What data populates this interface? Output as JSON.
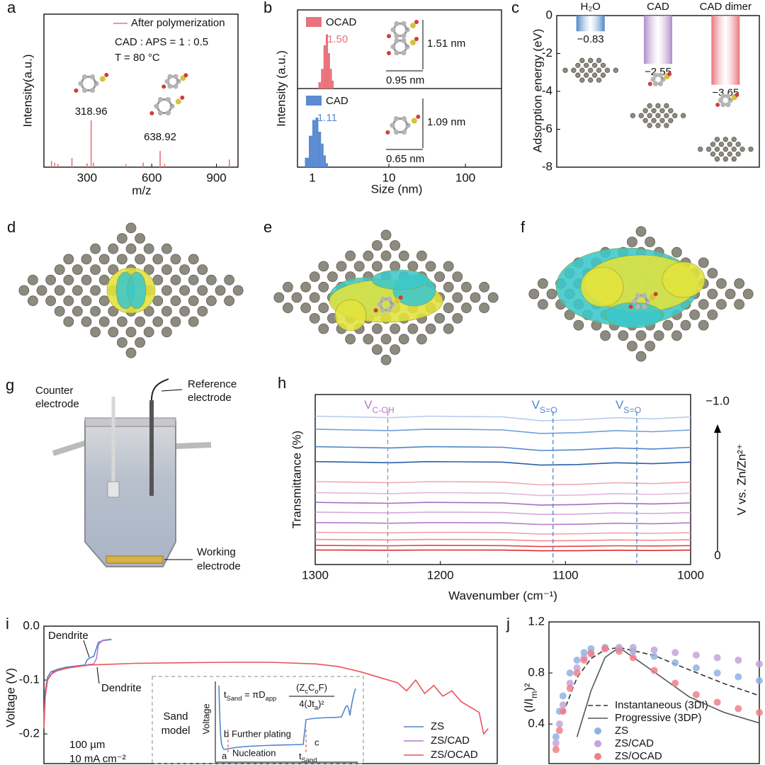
{
  "chart_data": [
    {
      "panel": "a",
      "type": "stem",
      "color": "#e8737a",
      "legend_label": "After polymerization",
      "annotations": [
        "CAD : APS = 1 : 0.5",
        "T = 80 °C"
      ],
      "xlabel": "m/z",
      "ylabel": "Intensity(a.u.)",
      "x": [
        135,
        150,
        165,
        230,
        300,
        318.96,
        330,
        480,
        560,
        638.92,
        660,
        960
      ],
      "values": [
        4,
        3,
        2,
        6,
        2,
        30.6,
        3,
        2,
        3,
        10.6,
        2,
        5
      ],
      "peak_labels": [
        318.96,
        638.92
      ],
      "xlim": [
        100,
        1000
      ],
      "xticks": [
        300,
        600,
        900
      ],
      "ylim": [
        0,
        100
      ]
    },
    {
      "panel": "b",
      "type": "histogram",
      "log_x": true,
      "xlabel": "Size (nm)",
      "ylabel": "Intensity (a.u.)",
      "xlim": [
        0.64,
        296
      ],
      "xticks": [
        1,
        10,
        100
      ],
      "ylim": [
        0,
        100
      ],
      "series": [
        {
          "name": "OCAD",
          "color": "#e8737a",
          "bins": [
            1.2,
            1.3,
            1.4,
            1.5,
            1.6,
            1.7,
            1.8,
            1.9
          ],
          "values": [
            8,
            25,
            55,
            69,
            45,
            25,
            10
          ],
          "peak": {
            "value": 1.5,
            "label": "1.50"
          },
          "dimensions": [
            "1.51 nm",
            "0.95 nm"
          ]
        },
        {
          "name": "CAD",
          "color": "#5b8bd0",
          "bins": [
            0.8,
            0.9,
            1.0,
            1.1,
            1.2,
            1.3,
            1.4,
            1.5,
            1.6
          ],
          "values": [
            12,
            40,
            60,
            63,
            45,
            30,
            15,
            5
          ],
          "peak": 1.11,
          "dimensions": [
            "1.09 nm",
            "0.65 nm"
          ]
        }
      ]
    },
    {
      "panel": "c",
      "type": "bar",
      "ylabel": "Adsorption energy (eV)",
      "categories": [
        "H₂O",
        "CAD",
        "CAD dimer"
      ],
      "values": [
        -0.83,
        -2.55,
        -3.65
      ],
      "value_labels": [
        "−0.83",
        "−2.55",
        "−3.65"
      ],
      "colors": [
        "#4f86c6",
        "#b08cc8",
        "#e8737a"
      ],
      "ylim": [
        -8,
        0
      ],
      "yticks": [
        0,
        -2,
        -4,
        -6,
        -8
      ]
    },
    {
      "panel": "h",
      "type": "line",
      "xlabel": "Wavenumber (cm⁻¹)",
      "ylabel": "Transmittance (%)",
      "y2label": "V vs. Zn/Zn²⁺",
      "xlim": [
        1300,
        1000
      ],
      "xticks": [
        1300,
        1200,
        1100,
        1000
      ],
      "ylim": [
        0,
        12
      ],
      "y2lim": [
        0,
        -1
      ],
      "y2ticks": [
        {
          "value": -1,
          "label": "−1.0"
        },
        0
      ],
      "markers": [
        {
          "symbol": "V",
          "subscript": "C-OH",
          "x": 1242,
          "color": "#b57ac8"
        },
        {
          "symbol": "V",
          "subscript": "S=O",
          "x": 1110,
          "color": "#4f86cc"
        },
        {
          "symbol": "V",
          "subscript": "S=O",
          "x": 1043,
          "color": "#4f86cc"
        }
      ],
      "x": [
        1300,
        1270,
        1240,
        1210,
        1180,
        1150,
        1120,
        1090,
        1060,
        1030,
        1000
      ],
      "series": [
        {
          "color": "#d62f2f",
          "values": [
            0.47,
            0.46,
            0.45,
            0.47,
            0.47,
            0.46,
            0.41,
            0.42,
            0.45,
            0.43,
            0.46
          ]
        },
        {
          "color": "#e04848",
          "values": [
            0.83,
            0.81,
            0.8,
            0.83,
            0.82,
            0.81,
            0.74,
            0.76,
            0.8,
            0.78,
            0.81
          ]
        },
        {
          "color": "#f28a8a",
          "values": [
            1.29,
            1.27,
            1.25,
            1.29,
            1.28,
            1.27,
            1.18,
            1.2,
            1.25,
            1.22,
            1.27
          ]
        },
        {
          "color": "#f3a3a8",
          "values": [
            1.84,
            1.82,
            1.8,
            1.84,
            1.84,
            1.82,
            1.71,
            1.73,
            1.8,
            1.76,
            1.82
          ]
        },
        {
          "color": "#b57ac8",
          "values": [
            2.6,
            2.58,
            2.55,
            2.6,
            2.59,
            2.58,
            2.45,
            2.47,
            2.55,
            2.51,
            2.58
          ]
        },
        {
          "color": "#d4a8dc",
          "values": [
            3.41,
            3.38,
            3.35,
            3.41,
            3.4,
            3.38,
            3.23,
            3.26,
            3.35,
            3.3,
            3.38
          ]
        },
        {
          "color": "#a66dbf",
          "values": [
            4.17,
            4.13,
            4.1,
            4.17,
            4.15,
            4.13,
            3.96,
            4.0,
            4.1,
            4.05,
            4.13
          ]
        },
        {
          "color": "#e3b8de",
          "values": [
            4.93,
            4.89,
            4.85,
            4.93,
            4.91,
            4.89,
            4.7,
            4.74,
            4.85,
            4.79,
            4.89
          ]
        },
        {
          "color": "#f0a7b6",
          "values": [
            5.78,
            5.74,
            5.7,
            5.78,
            5.77,
            5.74,
            5.53,
            5.57,
            5.7,
            5.63,
            5.74
          ]
        },
        {
          "color": "#2b5fa6",
          "values": [
            7.34,
            7.3,
            7.25,
            7.34,
            7.32,
            7.3,
            7.07,
            7.11,
            7.25,
            7.18,
            7.3
          ]
        },
        {
          "color": "#4f86cc",
          "values": [
            8.5,
            8.45,
            8.4,
            8.5,
            8.48,
            8.45,
            8.2,
            8.25,
            8.4,
            8.32,
            8.45
          ]
        },
        {
          "color": "#6f9fd8",
          "values": [
            9.86,
            9.8,
            9.75,
            9.86,
            9.84,
            9.8,
            9.53,
            9.59,
            9.75,
            9.66,
            9.8
          ]
        },
        {
          "color": "#b8cdee",
          "values": [
            10.87,
            10.81,
            10.75,
            10.87,
            10.84,
            10.81,
            10.52,
            10.58,
            10.75,
            10.66,
            10.81
          ]
        }
      ]
    },
    {
      "panel": "i",
      "type": "line",
      "ylabel": "Voltage (V)",
      "xlim": [
        0,
        100
      ],
      "ylim": [
        -0.255,
        0
      ],
      "yticks": [
        {
          "value": 0,
          "label": "0.0"
        },
        -0.1,
        -0.2
      ],
      "annotations": [
        "Dendrite",
        "Dendrite",
        "100 µm",
        "10 mA cm⁻²"
      ],
      "series": [
        {
          "name": "ZS",
          "color": "#4f86cc",
          "x": [
            0,
            0.3,
            0.8,
            1.5,
            3,
            5,
            7,
            9,
            9.6,
            10,
            10.4,
            11,
            12,
            13,
            14.9
          ],
          "values": [
            -0.17,
            -0.12,
            -0.095,
            -0.085,
            -0.08,
            -0.076,
            -0.074,
            -0.072,
            -0.062,
            -0.06,
            -0.058,
            -0.056,
            -0.03,
            -0.027,
            -0.025
          ]
        },
        {
          "name": "ZS/CAD",
          "color": "#b57ac8",
          "x": [
            0,
            0.3,
            0.8,
            1.5,
            3,
            5,
            7,
            9,
            10,
            11,
            11.6,
            12,
            12.5,
            13,
            14.9
          ],
          "values": [
            -0.18,
            -0.13,
            -0.1,
            -0.09,
            -0.082,
            -0.078,
            -0.075,
            -0.073,
            -0.071,
            -0.07,
            -0.06,
            -0.035,
            -0.03,
            -0.026,
            -0.024
          ]
        },
        {
          "name": "ZS/OCAD",
          "color": "#e8555a",
          "x": [
            0,
            0.3,
            0.8,
            2,
            5,
            10,
            20,
            30,
            40,
            50,
            60,
            65,
            70,
            74,
            78,
            80,
            82,
            84,
            86,
            88,
            90,
            92,
            94,
            96,
            97,
            98
          ],
          "values": [
            -0.19,
            -0.13,
            -0.1,
            -0.085,
            -0.078,
            -0.072,
            -0.069,
            -0.068,
            -0.067,
            -0.067,
            -0.07,
            -0.075,
            -0.085,
            -0.095,
            -0.105,
            -0.12,
            -0.1,
            -0.125,
            -0.11,
            -0.13,
            -0.12,
            -0.14,
            -0.15,
            -0.16,
            -0.2,
            -0.19
          ]
        }
      ],
      "inset": {
        "label": [
          "Sand",
          "model"
        ],
        "ylabel": "Voltage",
        "formula": {
          "left": [
            [
              "t",
              "Sand"
            ],
            [
              " = πD",
              "app"
            ]
          ],
          "num": [
            [
              "(Z",
              "c"
            ],
            [
              "C",
              "o"
            ],
            [
              "F)"
            ]
          ],
          "den": [
            [
              "4(Jt",
              "a"
            ],
            [
              ")²"
            ]
          ]
        },
        "points": [
          "a",
          "b",
          "c"
        ],
        "phases": [
          "Nucleation",
          "Further plating"
        ],
        "t_sand": [
          [
            "t",
            "Sand"
          ]
        ]
      }
    },
    {
      "panel": "j",
      "type": "line",
      "ylabel": [
        [
          "(I/I",
          "m"
        ],
        [
          ")²"
        ]
      ],
      "xlim": [
        0,
        3
      ],
      "ylim": [
        0.09,
        1.2
      ],
      "yticks": [
        1.2,
        0.8,
        0.4
      ],
      "series": [
        {
          "name": "Instantaneous (3DI)",
          "style": "dashed",
          "color": "#333333",
          "x": [
            0.2,
            0.4,
            0.6,
            0.8,
            1,
            1.5,
            2,
            2.5,
            3
          ],
          "values": [
            0.483,
            0.762,
            0.913,
            0.982,
            1,
            0.937,
            0.825,
            0.716,
            0.622
          ]
        },
        {
          "name": "Progressive (3DP)",
          "style": "solid",
          "color": "#555555",
          "x": [
            0.4,
            0.6,
            0.8,
            1,
            1.5,
            2,
            2.5,
            3
          ],
          "values": [
            0.298,
            0.661,
            0.922,
            1,
            0.808,
            0.613,
            0.49,
            0.408
          ]
        },
        {
          "name": "ZS",
          "style": "scatter",
          "color": "#8fb3e3",
          "x": [
            0.1,
            0.15,
            0.2,
            0.3,
            0.4,
            0.5,
            0.6,
            0.8,
            1.0,
            1.2,
            1.5,
            1.8,
            2.1,
            2.4,
            2.7,
            3.0
          ],
          "values": [
            0.3,
            0.5,
            0.62,
            0.8,
            0.9,
            0.96,
            0.99,
            1.0,
            0.99,
            0.97,
            0.93,
            0.88,
            0.84,
            0.8,
            0.77,
            0.74
          ]
        },
        {
          "name": "ZS/CAD",
          "style": "scatter",
          "color": "#c6a3d8",
          "x": [
            0.1,
            0.15,
            0.2,
            0.3,
            0.4,
            0.5,
            0.6,
            0.8,
            1.0,
            1.2,
            1.5,
            1.8,
            2.1,
            2.4,
            2.7,
            3.0
          ],
          "values": [
            0.25,
            0.4,
            0.55,
            0.72,
            0.84,
            0.92,
            0.96,
            0.99,
            1.0,
            1.0,
            0.98,
            0.96,
            0.94,
            0.92,
            0.9,
            0.87
          ]
        },
        {
          "name": "ZS/OCAD",
          "style": "scatter",
          "color": "#f08088",
          "x": [
            0.1,
            0.15,
            0.2,
            0.3,
            0.4,
            0.5,
            0.6,
            0.8,
            1.0,
            1.2,
            1.5,
            1.8,
            2.1,
            2.4,
            2.7,
            3.0
          ],
          "values": [
            0.2,
            0.35,
            0.5,
            0.68,
            0.8,
            0.9,
            0.95,
            0.99,
            0.97,
            0.92,
            0.82,
            0.72,
            0.63,
            0.57,
            0.52,
            0.49
          ]
        }
      ]
    }
  ],
  "images": [
    {
      "panel": "d"
    },
    {
      "panel": "e"
    },
    {
      "panel": "f"
    }
  ],
  "cell": {
    "panel": "g",
    "labels": [
      [
        "Counter",
        "electrode"
      ],
      [
        "Reference",
        "electrode"
      ],
      [
        "Working",
        "electrode"
      ]
    ]
  }
}
